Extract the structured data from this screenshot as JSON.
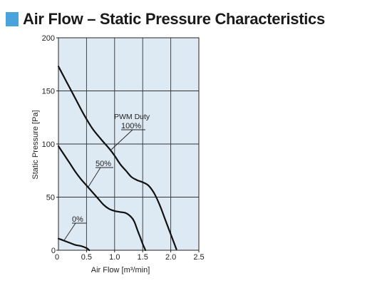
{
  "header": {
    "title": "Air Flow – Static Pressure Characteristics",
    "accent_color": "#4aa3dc"
  },
  "chart_data": {
    "type": "line",
    "title": "",
    "xlabel": "Air Flow [m³/min]",
    "ylabel": "Static Pressure [Pa]",
    "xlim": [
      0,
      2.5
    ],
    "ylim": [
      0,
      200
    ],
    "x_ticks": [
      "0.5",
      "1.0",
      "1.5",
      "2.0",
      "2.5"
    ],
    "y_ticks": [
      "0",
      "50",
      "100",
      "150",
      "200"
    ],
    "grid": true,
    "plot_background": "#dde9f3",
    "line_color": "#111111",
    "legend_title": "PWM Duty",
    "series": [
      {
        "name": "100%",
        "x": [
          0,
          0.15,
          0.3,
          0.45,
          0.6,
          0.75,
          0.9,
          1.0,
          1.1,
          1.2,
          1.3,
          1.4,
          1.5,
          1.6,
          1.7,
          1.8,
          1.9,
          2.0,
          2.1
        ],
        "y": [
          173,
          158,
          143,
          128,
          115,
          105,
          96,
          89,
          81,
          75,
          69,
          66,
          64,
          61,
          54,
          43,
          29,
          15,
          1
        ]
      },
      {
        "name": "50%",
        "x": [
          0,
          0.1,
          0.2,
          0.3,
          0.4,
          0.5,
          0.6,
          0.7,
          0.8,
          0.9,
          1.0,
          1.1,
          1.2,
          1.3,
          1.35,
          1.4,
          1.45,
          1.5,
          1.55
        ],
        "y": [
          98,
          90,
          82,
          74,
          67,
          61,
          55,
          49,
          43,
          39,
          37,
          36,
          35,
          31,
          27,
          20,
          13,
          6,
          0
        ]
      },
      {
        "name": "0%",
        "x": [
          0,
          0.1,
          0.2,
          0.3,
          0.4,
          0.5,
          0.55
        ],
        "y": [
          11,
          9,
          7,
          5,
          4,
          2,
          0
        ]
      }
    ]
  }
}
